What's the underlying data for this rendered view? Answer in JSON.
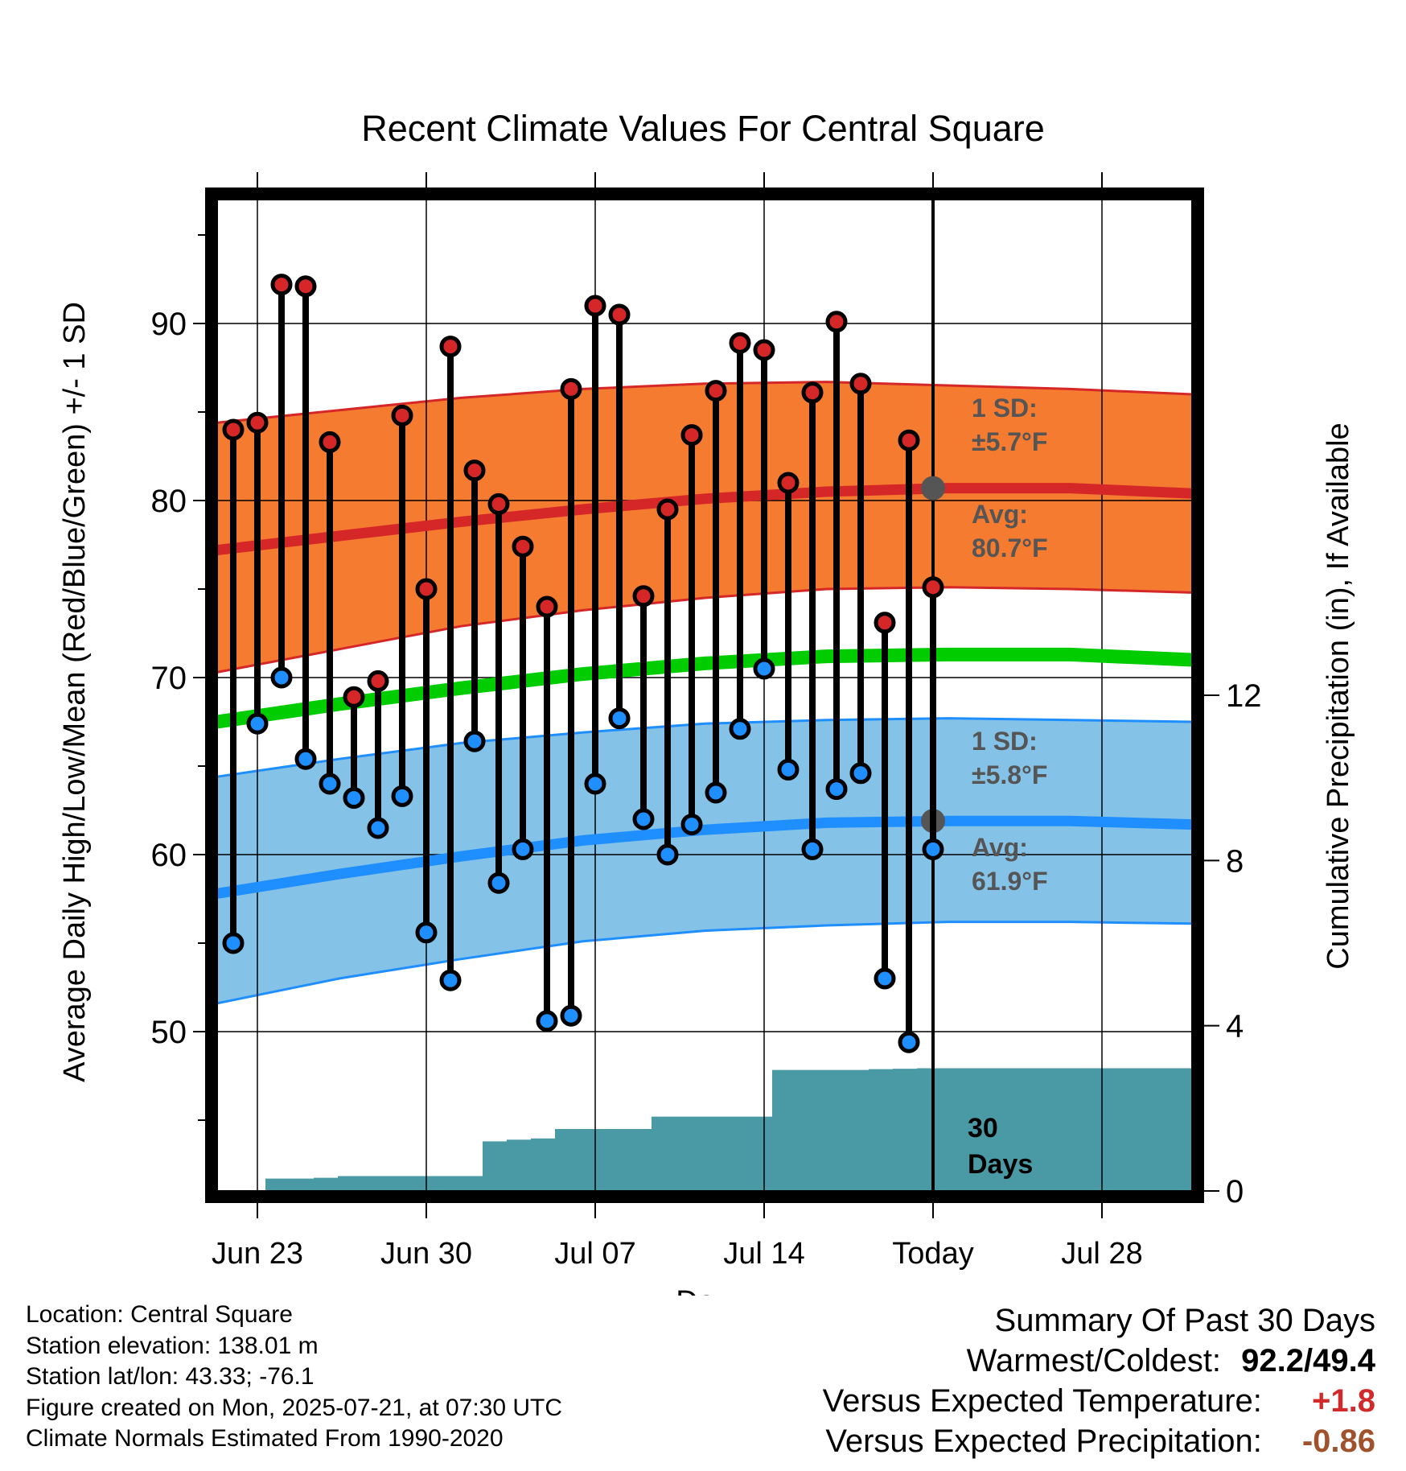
{
  "chart_data": {
    "type": "line",
    "title": "Recent Climate Values For Central Square",
    "xlabel": "Day",
    "ylabel": "Average Daily High/Low/Mean (Red/Blue/Green) +/- 1 SD",
    "y2label": "Cumulative Precipitation (in), If Available",
    "ylim": [
      41,
      97
    ],
    "y2lim": [
      0,
      24
    ],
    "x_tick_labels": [
      "Jun 23",
      "Jun 30",
      "Jul 07",
      "Jul 14",
      "Today",
      "Jul 28"
    ],
    "y_ticks": [
      50,
      60,
      70,
      80,
      90
    ],
    "y2_ticks": [
      0,
      4,
      8,
      12
    ],
    "grid": true,
    "colors": {
      "high": "#d62728",
      "low": "#1f8fff",
      "mean": "#00cc00",
      "high_band": "#f47b30",
      "low_band": "#85c2e8",
      "precip": "#4a9aa5"
    },
    "daily_highs": [
      84.0,
      84.4,
      92.2,
      92.1,
      83.3,
      68.9,
      69.8,
      84.8,
      75.0,
      88.7,
      81.7,
      79.8,
      77.4,
      74.0,
      86.3,
      91.0,
      90.5,
      74.6,
      79.5,
      83.7,
      86.2,
      88.9,
      88.5,
      81.0,
      86.1,
      90.1,
      86.6,
      73.1,
      83.4,
      75.1
    ],
    "daily_lows": [
      55.0,
      67.4,
      70.0,
      65.4,
      64.0,
      63.2,
      61.5,
      63.3,
      55.6,
      52.9,
      66.4,
      58.4,
      60.3,
      50.6,
      50.9,
      64.0,
      67.7,
      62.0,
      60.0,
      61.7,
      63.5,
      67.1,
      70.5,
      64.8,
      60.3,
      63.7,
      64.6,
      53.0,
      49.4,
      60.3
    ],
    "normal_high": {
      "avg": [
        77.2,
        78.0,
        78.8,
        79.5,
        80.1,
        80.5,
        80.7,
        80.7,
        80.4
      ],
      "upper": [
        84.4,
        85.1,
        85.8,
        86.3,
        86.6,
        86.7,
        86.5,
        86.3,
        86.0
      ],
      "lower": [
        70.3,
        71.6,
        72.9,
        73.8,
        74.5,
        75.0,
        75.1,
        75.0,
        74.8
      ]
    },
    "normal_low": {
      "avg": [
        57.8,
        58.9,
        59.9,
        60.8,
        61.4,
        61.8,
        61.9,
        61.9,
        61.7
      ],
      "upper": [
        64.4,
        65.4,
        66.3,
        66.9,
        67.4,
        67.6,
        67.7,
        67.6,
        67.5
      ],
      "lower": [
        51.6,
        53.0,
        54.1,
        55.1,
        55.7,
        56.0,
        56.2,
        56.2,
        56.1
      ]
    },
    "normal_mean": [
      67.5,
      68.5,
      69.4,
      70.2,
      70.8,
      71.2,
      71.3,
      71.3,
      71.0
    ],
    "cumulative_precip": [
      0.0,
      0.3,
      0.3,
      0.32,
      0.36,
      0.36,
      0.36,
      0.36,
      0.36,
      0.36,
      1.2,
      1.24,
      1.27,
      1.5,
      1.5,
      1.5,
      1.5,
      1.8,
      1.8,
      1.8,
      1.8,
      1.8,
      2.93,
      2.93,
      2.93,
      2.93,
      2.95,
      2.96,
      2.97,
      2.97,
      2.97
    ],
    "today_high_normal": 80.7,
    "today_low_normal": 61.9,
    "high_sd_label": "1 SD:",
    "high_sd_value": "±5.7°F",
    "high_avg_label": "Avg:",
    "high_avg_value": "80.7°F",
    "low_sd_label": "1 SD:",
    "low_sd_value": "±5.8°F",
    "low_avg_label": "Avg:",
    "low_avg_value": "61.9°F",
    "period_label_1": "30",
    "period_label_2": "Days"
  },
  "footer": {
    "location": "Location: Central Square",
    "elevation": "Station elevation: 138.01 m",
    "latlon": "Station lat/lon: 43.33; -76.1",
    "created": "Figure created on Mon, 2025-07-21, at 07:30 UTC",
    "normals": "Climate Normals Estimated From 1990-2020"
  },
  "summary": {
    "title": "Summary Of Past 30 Days",
    "warmest_label": "Warmest/Coldest:",
    "warmest_value": "92.2/49.4",
    "temp_label": "Versus Expected Temperature:",
    "temp_value": "+1.8",
    "precip_label": "Versus Expected Precipitation:",
    "precip_value": "-0.86"
  }
}
